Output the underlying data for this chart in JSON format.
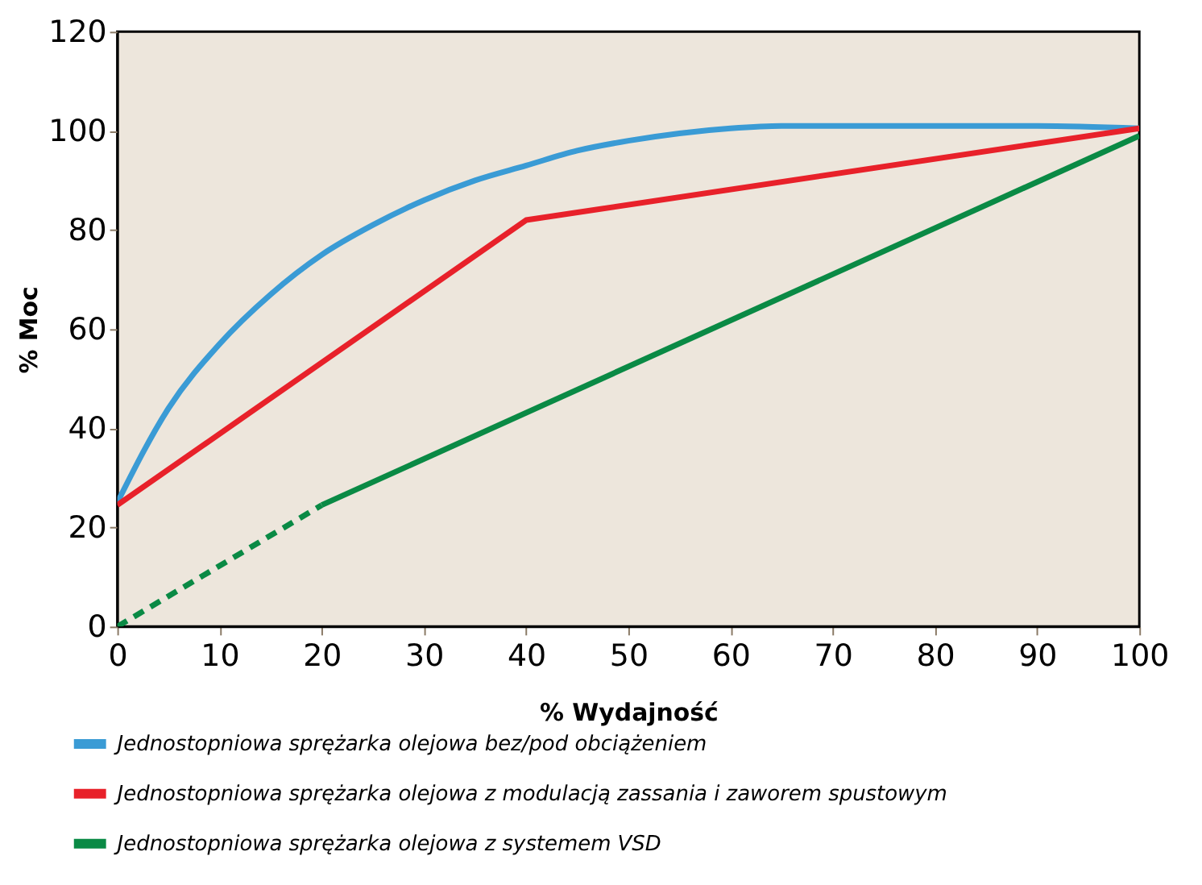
{
  "chart_data": {
    "type": "line",
    "xlabel": "% Wydajność",
    "ylabel": "% Moc",
    "xlim": [
      0,
      100
    ],
    "ylim": [
      0,
      120
    ],
    "xticks": [
      0,
      10,
      20,
      30,
      40,
      50,
      60,
      70,
      80,
      90,
      100
    ],
    "yticks": [
      0,
      20,
      40,
      60,
      80,
      100,
      120
    ],
    "grid": false,
    "legend": "bottom",
    "marker": "none",
    "line_style": "solid",
    "series": [
      {
        "name": "Jednostopniowa sprężarka olejowa bez/pod obciążeniem",
        "color": "#3a9bd5",
        "x": [
          0,
          5,
          10,
          15,
          20,
          25,
          30,
          35,
          40,
          45,
          50,
          55,
          60,
          65,
          70,
          80,
          90,
          100
        ],
        "values": [
          25,
          44,
          57,
          67,
          75,
          81,
          86,
          90,
          93,
          96,
          98,
          99.5,
          100.5,
          101,
          101,
          101,
          101,
          100.5
        ]
      },
      {
        "name": "Jednostopniowa sprężarka olejowa z modulacją zassania i zaworem spustowym",
        "color": "#e8212a",
        "x": [
          0,
          40,
          100
        ],
        "values": [
          24.5,
          82,
          100.5
        ]
      },
      {
        "name": "Jednostopniowa sprężarka olejowa z systemem  VSD",
        "color": "#0a8a45",
        "x": [
          20,
          100
        ],
        "values": [
          24.5,
          99
        ]
      },
      {
        "color": "#0a8a45",
        "line_style": "dashed",
        "x": [
          0,
          20
        ],
        "values": [
          0,
          24.5
        ]
      }
    ]
  }
}
